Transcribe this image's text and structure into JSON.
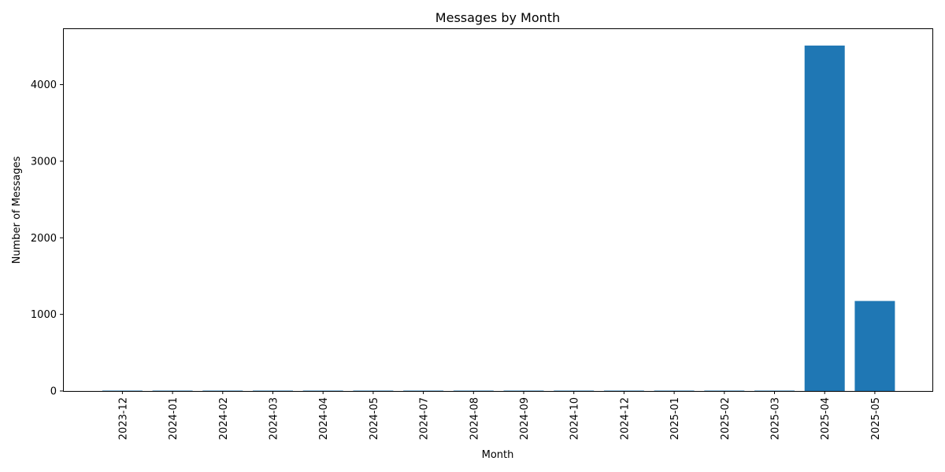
{
  "chart_data": {
    "type": "bar",
    "title": "Messages by Month",
    "xlabel": "Month",
    "ylabel": "Number of Messages",
    "categories": [
      "2023-12",
      "2024-01",
      "2024-02",
      "2024-03",
      "2024-04",
      "2024-05",
      "2024-07",
      "2024-08",
      "2024-09",
      "2024-10",
      "2024-12",
      "2025-01",
      "2025-02",
      "2025-03",
      "2025-04",
      "2025-05"
    ],
    "values": [
      5,
      5,
      5,
      5,
      5,
      5,
      5,
      5,
      5,
      5,
      5,
      5,
      5,
      5,
      4510,
      1175
    ],
    "ylim": [
      0,
      4735
    ],
    "yticks": [
      0,
      1000,
      2000,
      3000,
      4000
    ],
    "bar_color": "#1f77b4",
    "grid": false,
    "legend": "none"
  }
}
